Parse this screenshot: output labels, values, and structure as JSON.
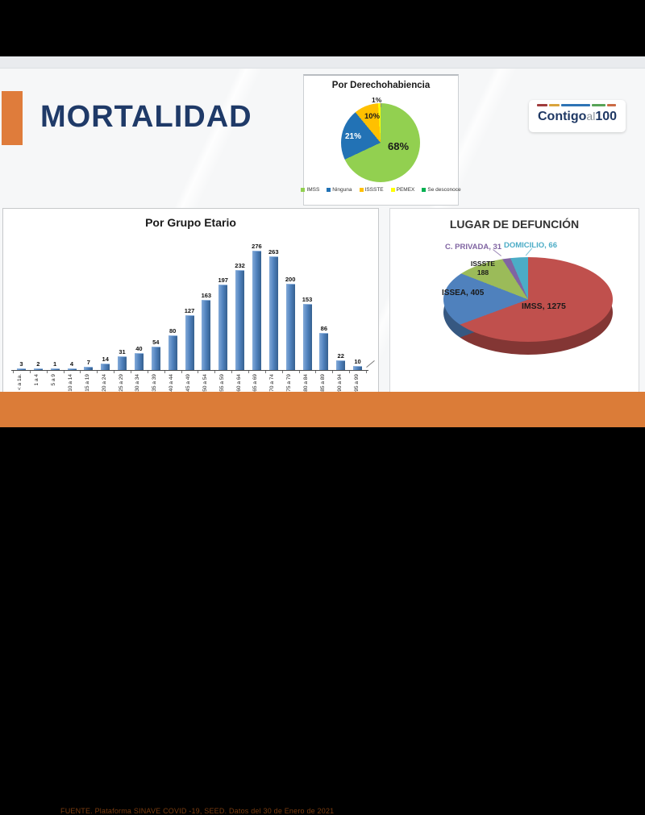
{
  "slide": {
    "title": "MORTALIDAD",
    "footer": "FUENTE. Plataforma SINAVE COVID -19, SEED. Datos del 30 de Enero de 2021",
    "colors": {
      "accent_orange": "#DB7C38",
      "title_navy": "#1F3A68",
      "footer_text": "#7B3D10"
    },
    "logo": {
      "part1": "Contigo",
      "part2": "al",
      "part3": "100",
      "dash_colors": [
        "#A03B3C",
        "#D9A43C",
        "#2E74B5",
        "#57A457",
        "#CB6A45"
      ],
      "dash_widths": [
        13,
        13,
        36,
        17,
        11
      ]
    }
  },
  "chart_data": [
    {
      "type": "pie",
      "title": "Por Derechohabiencia",
      "labels": [
        "IMSS",
        "Ninguna",
        "ISSSTE",
        "PEMEX",
        "Se desconoce"
      ],
      "values": [
        68,
        21,
        10,
        1,
        0
      ],
      "unit": "%",
      "colors": [
        "#92D050",
        "#2272B5",
        "#FFC000",
        "#FFFF00",
        "#00B050"
      ],
      "slice_labels": [
        "68%",
        "21%",
        "10%",
        "1%"
      ],
      "legend_position": "bottom"
    },
    {
      "type": "bar",
      "title": "Por Grupo Etario",
      "categories": [
        "< a 1a.",
        "1 a 4",
        "5 a 9",
        "10 a 14",
        "15 a 19",
        "20 a 24",
        "25 a 29",
        "30 a 34",
        "35 a 39",
        "40 a 44",
        "45 a 49",
        "50 a 54",
        "55 a 59",
        "60 a 64",
        "65 a 69",
        "70 a 74",
        "75 a 79",
        "80 a 84",
        "85 a 89",
        "90 a 94",
        "95 a 99"
      ],
      "values": [
        3,
        2,
        1,
        4,
        7,
        14,
        31,
        40,
        54,
        80,
        127,
        163,
        197,
        232,
        276,
        263,
        200,
        153,
        86,
        22,
        10
      ],
      "bar_color": "#4F81BD",
      "ylim": [
        0,
        276
      ],
      "grid": false,
      "data_labels": true
    },
    {
      "type": "pie",
      "style": "3d",
      "title": "LUGAR DE DEFUNCIÓN",
      "labels": [
        "IMSS",
        "ISSEA",
        "ISSSTE",
        "C. PRIVADA",
        "DOMICILIO"
      ],
      "values": [
        1275,
        405,
        188,
        31,
        66
      ],
      "colors": [
        "#C0504D",
        "#4F81BD",
        "#9BBB59",
        "#8064A2",
        "#4BACC6"
      ],
      "data_labels": [
        "IMSS, 1275",
        "ISSEA, 405",
        "ISSSTE\n188",
        "C. PRIVADA, 31",
        "DOMICILIO, 66"
      ]
    }
  ]
}
